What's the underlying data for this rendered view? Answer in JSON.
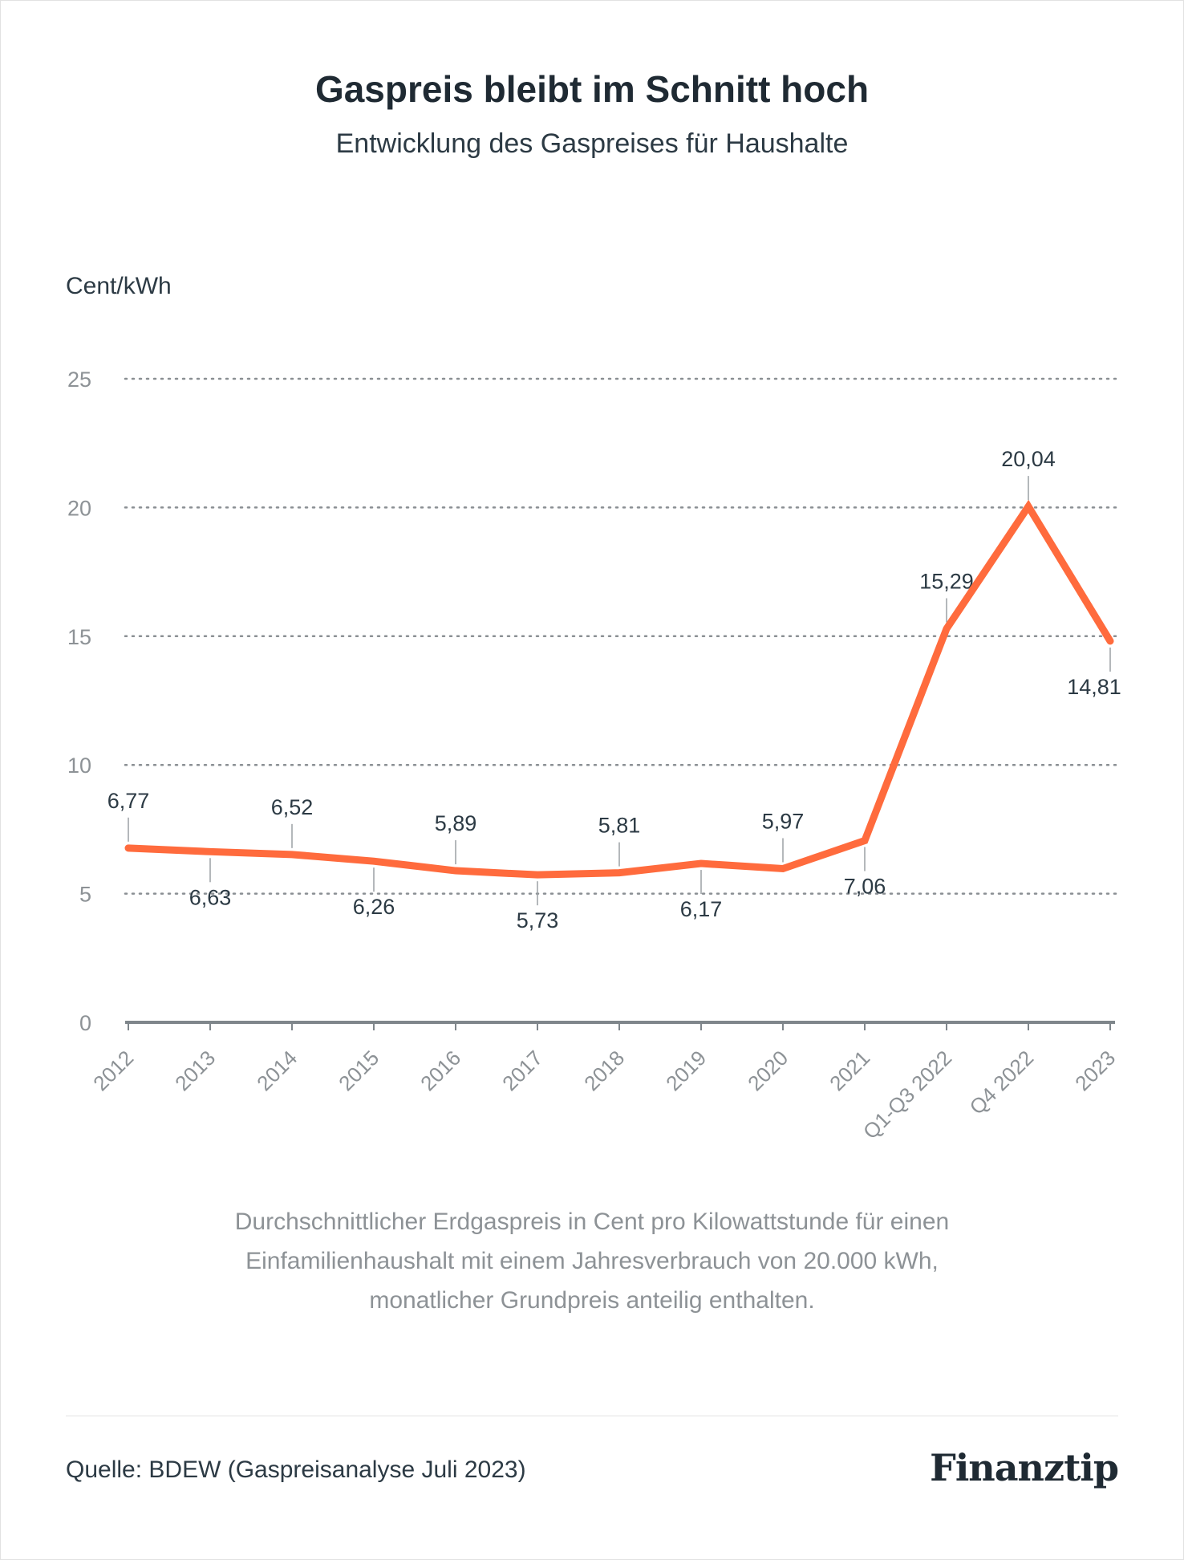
{
  "header": {
    "title": "Gaspreis bleibt im Schnitt hoch",
    "subtitle": "Entwicklung des Gaspreises für Haushalte"
  },
  "chart_data": {
    "type": "line",
    "title": "Gaspreis bleibt im Schnitt hoch",
    "subtitle": "Entwicklung des Gaspreises für Haushalte",
    "ylabel": "Cent/kWh",
    "xlabel": "",
    "ylim": [
      0,
      25
    ],
    "yticks": [
      0,
      5,
      10,
      15,
      20,
      25
    ],
    "grid": "horizontal dotted",
    "line_color": "#ff6b3d",
    "categories": [
      "2012",
      "2013",
      "2014",
      "2015",
      "2016",
      "2017",
      "2018",
      "2019",
      "2020",
      "2021",
      "Q1-Q3 2022",
      "Q4 2022",
      "2023"
    ],
    "values": [
      6.77,
      6.63,
      6.52,
      6.26,
      5.89,
      5.73,
      5.81,
      6.17,
      5.97,
      7.06,
      15.29,
      20.04,
      14.81
    ],
    "data_labels": [
      "6,77",
      "6,63",
      "6,52",
      "6,26",
      "5,89",
      "5,73",
      "5,81",
      "6,17",
      "5,97",
      "7,06",
      "15,29",
      "20,04",
      "14,81"
    ],
    "label_positions": [
      "above",
      "below",
      "above",
      "below",
      "above",
      "below",
      "above",
      "below",
      "above",
      "below",
      "above",
      "above",
      "below"
    ]
  },
  "footnote": {
    "lines": [
      "Durchschnittlicher Erdgaspreis in Cent pro Kilowattstunde für einen",
      "Einfamilienhaushalt mit einem Jahresverbrauch von 20.000 kWh,",
      "monatlicher Grundpreis anteilig enthalten."
    ]
  },
  "footer": {
    "source": "Quelle: BDEW (Gaspreisanalyse Juli 2023)",
    "logo": "Finanztip"
  }
}
